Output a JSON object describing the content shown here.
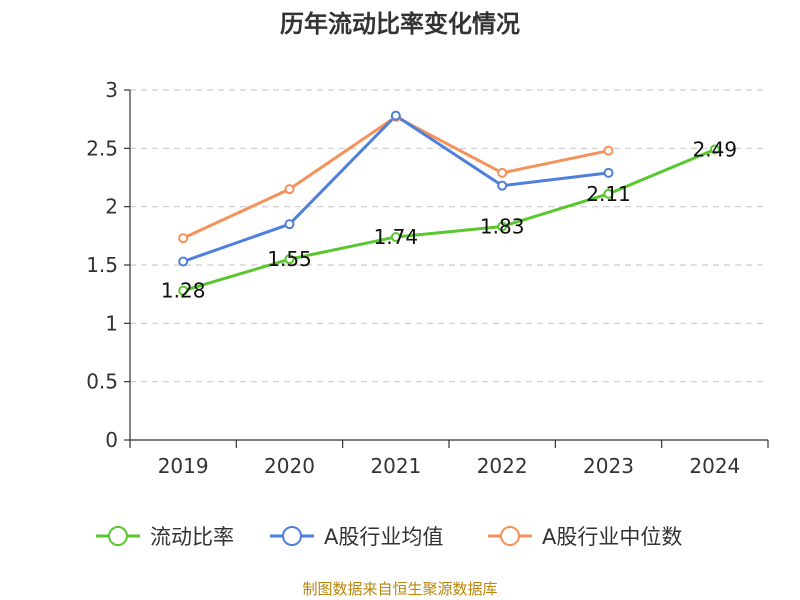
{
  "chart_data": {
    "type": "line",
    "title": "历年流动比率变化情况",
    "x": [
      "2019",
      "2020",
      "2021",
      "2022",
      "2023",
      "2024"
    ],
    "ylim": [
      0,
      3
    ],
    "yticks": [
      "0",
      "0.5",
      "1",
      "1.5",
      "2",
      "2.5",
      "3"
    ],
    "grid": "horizontal-dashed",
    "legend_position": "bottom",
    "series": [
      {
        "name": "流动比率",
        "color": "#5ac72f",
        "values": [
          1.28,
          1.55,
          1.74,
          1.83,
          2.11,
          2.49
        ],
        "labels": [
          "1.28",
          "1.55",
          "1.74",
          "1.83",
          "2.11",
          "2.49"
        ]
      },
      {
        "name": "A股行业均值",
        "color": "#4f7fdc",
        "values": [
          1.53,
          1.85,
          2.78,
          2.18,
          2.29,
          null
        ]
      },
      {
        "name": "A股行业中位数",
        "color": "#f5925a",
        "values": [
          1.73,
          2.15,
          2.77,
          2.29,
          2.48,
          null
        ]
      }
    ]
  },
  "source": "制图数据来自恒生聚源数据库"
}
